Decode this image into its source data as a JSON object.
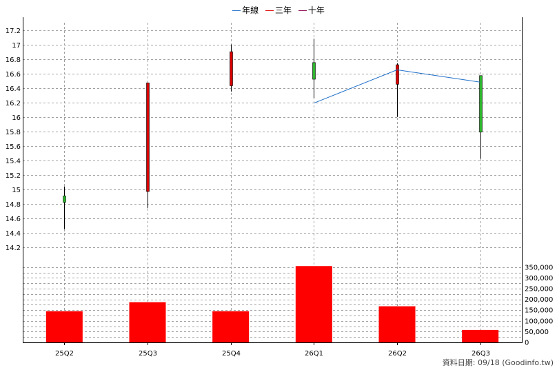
{
  "legend": [
    {
      "label": "年線",
      "color": "#1f6fc9"
    },
    {
      "label": "三年",
      "color": "#e00000"
    },
    {
      "label": "十年",
      "color": "#8b004b"
    }
  ],
  "source_text": "資料日期: 09/18  (Goodinfo.tw)",
  "chart_data": {
    "type": "candlestick",
    "categories": [
      "25Q2",
      "25Q3",
      "25Q4",
      "26Q1",
      "26Q2",
      "26Q3"
    ],
    "price_axis": {
      "ylim": [
        14.0,
        17.3
      ],
      "ticks": [
        "14.2",
        "14.4",
        "14.6",
        "14.8",
        "15",
        "15.2",
        "15.4",
        "15.6",
        "15.8",
        "16",
        "16.2",
        "16.4",
        "16.6",
        "16.8",
        "17",
        "17.2"
      ]
    },
    "candles": [
      {
        "open": 14.82,
        "close": 14.91,
        "high": 15.04,
        "low": 14.45,
        "color": "#2db52d"
      },
      {
        "open": 16.47,
        "close": 14.97,
        "high": 16.47,
        "low": 14.74,
        "color": "#d80000"
      },
      {
        "open": 16.9,
        "close": 16.43,
        "high": 17.0,
        "low": 16.35,
        "color": "#d80000"
      },
      {
        "open": 16.52,
        "close": 16.75,
        "high": 17.08,
        "low": 16.26,
        "color": "#2db52d"
      },
      {
        "open": 16.72,
        "close": 16.45,
        "high": 16.74,
        "low": 16.0,
        "color": "#d80000"
      },
      {
        "open": 15.79,
        "close": 16.57,
        "high": 16.57,
        "low": 15.42,
        "color": "#2db52d"
      }
    ],
    "year_line": {
      "name": "年線",
      "color": "#1f6fc9",
      "values": [
        null,
        null,
        null,
        16.19,
        16.65,
        16.48
      ]
    },
    "volume_axis": {
      "ylim": [
        0,
        375000
      ],
      "ticks": [
        "0",
        "50,000",
        "100,000",
        "150,000",
        "200,000",
        "250,000",
        "300,000",
        "350,000"
      ]
    },
    "volume": [
      145000,
      187000,
      145000,
      355000,
      168000,
      58000
    ],
    "volume_color": "#ff0000",
    "grid": true
  }
}
